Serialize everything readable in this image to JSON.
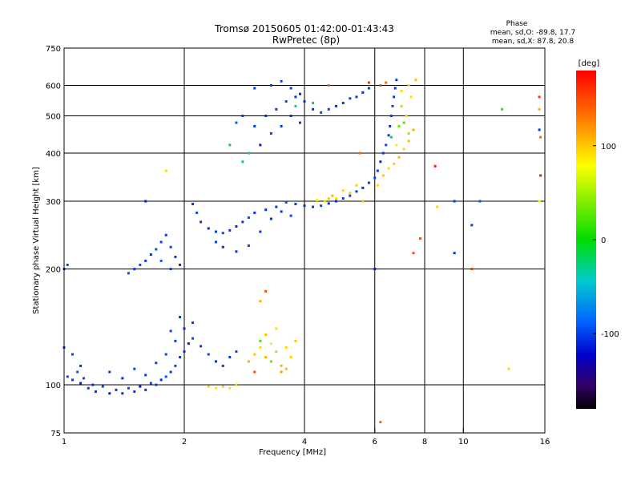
{
  "chart_data": {
    "type": "scatter",
    "title": "Tromsø 20150605 01:42:00-01:43:43",
    "subtitle": "RwPretec (8p)",
    "xlabel": "Frequency [MHz]",
    "ylabel": "Stationary phase Virtual Height [km]",
    "x_scale": "log",
    "y_scale": "log",
    "xlim": [
      1,
      16
    ],
    "ylim": [
      75,
      750
    ],
    "x_ticks": [
      1,
      2,
      4,
      6,
      8,
      10,
      16
    ],
    "x_tick_labels": [
      "1",
      "2",
      "4",
      "6",
      "8",
      "10",
      "16"
    ],
    "y_ticks": [
      75,
      100,
      200,
      300,
      400,
      500,
      600,
      750
    ],
    "y_tick_labels": [
      "75",
      "100",
      "200",
      "300",
      "400",
      "500",
      "600",
      "750"
    ],
    "grid": true,
    "phase_stats": {
      "heading": "Phase",
      "line1": "mean, sd,O: -89.8, 17.7",
      "line2": "mean, sd,X:  87.8, 20.8"
    },
    "colorbar": {
      "label": "[deg]",
      "ticks": [
        100,
        0,
        -100
      ],
      "tick_labels": [
        "100",
        "0",
        "-100"
      ],
      "range": [
        -180,
        180
      ]
    },
    "series": [
      {
        "points": [
          [
            1.02,
            105,
            -95
          ],
          [
            1.05,
            103,
            -100
          ],
          [
            1.08,
            108,
            -90
          ],
          [
            1.1,
            101,
            -110
          ],
          [
            1.12,
            104,
            -95
          ],
          [
            1.15,
            98,
            -100
          ],
          [
            1.18,
            100,
            -105
          ],
          [
            1.2,
            96,
            -100
          ],
          [
            1.25,
            99,
            -95
          ],
          [
            1.3,
            95,
            -110
          ],
          [
            1.35,
            97,
            -100
          ],
          [
            1.4,
            95,
            -105
          ],
          [
            1.45,
            98,
            -95
          ],
          [
            1.5,
            96,
            -100
          ],
          [
            1.55,
            99,
            -110
          ],
          [
            1.6,
            97,
            -100
          ],
          [
            1.65,
            101,
            -95
          ],
          [
            1.7,
            100,
            -100
          ],
          [
            1.75,
            103,
            -105
          ],
          [
            1.8,
            105,
            -90
          ],
          [
            1.85,
            108,
            -100
          ],
          [
            1.9,
            112,
            -95
          ],
          [
            1.95,
            118,
            -100
          ],
          [
            2.0,
            122,
            -105
          ],
          [
            2.05,
            128,
            -110
          ],
          [
            2.1,
            132,
            -95
          ],
          [
            2.2,
            126,
            -100
          ],
          [
            2.3,
            120,
            -95
          ],
          [
            2.4,
            115,
            -105
          ],
          [
            2.5,
            112,
            -100
          ],
          [
            2.6,
            118,
            -100
          ],
          [
            2.7,
            122,
            -95
          ],
          [
            1.3,
            108,
            -100
          ],
          [
            1.4,
            104,
            -105
          ],
          [
            1.5,
            110,
            -95
          ],
          [
            1.6,
            106,
            -100
          ],
          [
            1.7,
            114,
            -100
          ],
          [
            1.8,
            120,
            -95
          ],
          [
            1.9,
            130,
            -100
          ],
          [
            2.0,
            140,
            -105
          ],
          [
            1.95,
            150,
            -100
          ],
          [
            1.85,
            138,
            -95
          ],
          [
            2.1,
            145,
            -100
          ],
          [
            1.0,
            125,
            -100
          ],
          [
            1.05,
            120,
            -95
          ],
          [
            1.1,
            112,
            -100
          ],
          [
            2.3,
            99,
            110
          ],
          [
            2.4,
            98,
            105
          ],
          [
            2.5,
            99,
            112
          ],
          [
            2.6,
            98,
            108
          ],
          [
            2.7,
            100,
            110
          ],
          [
            2.9,
            115,
            120
          ],
          [
            3.0,
            120,
            115
          ],
          [
            3.1,
            125,
            110
          ],
          [
            3.2,
            118,
            120
          ],
          [
            3.3,
            128,
            105
          ],
          [
            3.4,
            122,
            115
          ],
          [
            3.5,
            112,
            120
          ],
          [
            3.6,
            125,
            110
          ],
          [
            3.7,
            118,
            112
          ],
          [
            3.2,
            135,
            118
          ],
          [
            3.4,
            140,
            108
          ],
          [
            3.1,
            130,
            30
          ],
          [
            3.3,
            115,
            40
          ],
          [
            3.0,
            108,
            150
          ],
          [
            3.5,
            108,
            125
          ],
          [
            3.8,
            130,
            115
          ],
          [
            3.6,
            110,
            118
          ],
          [
            3.2,
            175,
            150
          ],
          [
            3.1,
            165,
            120
          ],
          [
            1.45,
            195,
            -95
          ],
          [
            1.5,
            200,
            -100
          ],
          [
            1.55,
            205,
            -95
          ],
          [
            1.6,
            210,
            -100
          ],
          [
            1.65,
            218,
            -105
          ],
          [
            1.7,
            225,
            -95
          ],
          [
            1.75,
            235,
            -100
          ],
          [
            1.8,
            245,
            -100
          ],
          [
            1.85,
            228,
            -95
          ],
          [
            1.9,
            215,
            -100
          ],
          [
            1.95,
            205,
            -105
          ],
          [
            1.75,
            210,
            -90
          ],
          [
            1.85,
            200,
            -100
          ],
          [
            1.0,
            200,
            -100
          ],
          [
            1.02,
            205,
            -95
          ],
          [
            2.1,
            295,
            -100
          ],
          [
            2.15,
            280,
            -95
          ],
          [
            2.2,
            265,
            -100
          ],
          [
            2.3,
            255,
            -105
          ],
          [
            2.4,
            250,
            -100
          ],
          [
            2.5,
            248,
            -95
          ],
          [
            2.6,
            252,
            -100
          ],
          [
            2.7,
            258,
            -105
          ],
          [
            2.8,
            265,
            -100
          ],
          [
            2.9,
            272,
            -95
          ],
          [
            3.0,
            280,
            -100
          ],
          [
            3.2,
            285,
            -105
          ],
          [
            3.4,
            290,
            -100
          ],
          [
            3.6,
            298,
            -95
          ],
          [
            3.8,
            295,
            -100
          ],
          [
            4.0,
            292,
            -105
          ],
          [
            4.2,
            290,
            -100
          ],
          [
            4.4,
            292,
            -95
          ],
          [
            4.6,
            296,
            -100
          ],
          [
            4.8,
            300,
            -105
          ],
          [
            5.0,
            305,
            -100
          ],
          [
            5.2,
            310,
            -95
          ],
          [
            5.4,
            318,
            -100
          ],
          [
            5.6,
            325,
            -105
          ],
          [
            5.8,
            335,
            -100
          ],
          [
            6.0,
            345,
            -95
          ],
          [
            6.1,
            360,
            -100
          ],
          [
            6.2,
            380,
            -105
          ],
          [
            6.3,
            400,
            -100
          ],
          [
            6.4,
            420,
            -95
          ],
          [
            6.5,
            445,
            -100
          ],
          [
            6.55,
            470,
            -105
          ],
          [
            6.6,
            500,
            -100
          ],
          [
            6.65,
            530,
            -95
          ],
          [
            6.7,
            560,
            -100
          ],
          [
            6.75,
            590,
            -105
          ],
          [
            6.8,
            620,
            -100
          ],
          [
            2.4,
            235,
            -100
          ],
          [
            2.5,
            228,
            -105
          ],
          [
            2.7,
            222,
            -100
          ],
          [
            2.9,
            230,
            -95
          ],
          [
            3.1,
            250,
            -100
          ],
          [
            3.3,
            270,
            -105
          ],
          [
            3.5,
            282,
            -100
          ],
          [
            3.7,
            275,
            -95
          ],
          [
            4.5,
            300,
            110
          ],
          [
            4.6,
            305,
            115
          ],
          [
            4.7,
            310,
            120
          ],
          [
            4.8,
            305,
            108
          ],
          [
            5.0,
            320,
            110
          ],
          [
            5.2,
            315,
            115
          ],
          [
            4.3,
            302,
            105
          ],
          [
            5.4,
            330,
            112
          ],
          [
            5.6,
            300,
            118
          ],
          [
            6.1,
            330,
            110
          ],
          [
            6.3,
            350,
            115
          ],
          [
            6.5,
            365,
            108
          ],
          [
            6.7,
            375,
            112
          ],
          [
            6.9,
            390,
            118
          ],
          [
            7.1,
            410,
            110
          ],
          [
            7.3,
            430,
            115
          ],
          [
            7.5,
            460,
            120
          ],
          [
            7.2,
            500,
            110
          ],
          [
            7.0,
            530,
            115
          ],
          [
            7.4,
            560,
            108
          ],
          [
            7.3,
            600,
            112
          ],
          [
            7.6,
            620,
            118
          ],
          [
            7.0,
            580,
            110
          ],
          [
            6.8,
            420,
            105
          ],
          [
            6.9,
            470,
            40
          ],
          [
            7.1,
            480,
            30
          ],
          [
            7.3,
            450,
            60
          ],
          [
            6.6,
            440,
            -20
          ],
          [
            6.2,
            600,
            150
          ],
          [
            6.4,
            610,
            140
          ],
          [
            5.5,
            400,
            140
          ],
          [
            3.0,
            470,
            -100
          ],
          [
            3.2,
            500,
            -105
          ],
          [
            3.4,
            520,
            -100
          ],
          [
            3.6,
            545,
            -95
          ],
          [
            3.8,
            560,
            -100
          ],
          [
            4.0,
            545,
            -105
          ],
          [
            4.2,
            520,
            -100
          ],
          [
            4.4,
            510,
            -95
          ],
          [
            4.6,
            520,
            -100
          ],
          [
            4.8,
            530,
            -105
          ],
          [
            5.0,
            540,
            -100
          ],
          [
            5.2,
            555,
            -95
          ],
          [
            5.4,
            560,
            -100
          ],
          [
            5.6,
            575,
            -105
          ],
          [
            5.8,
            590,
            -100
          ],
          [
            3.1,
            420,
            -110
          ],
          [
            3.3,
            450,
            -95
          ],
          [
            3.5,
            470,
            -100
          ],
          [
            3.7,
            500,
            -105
          ],
          [
            3.9,
            480,
            -100
          ],
          [
            3.3,
            600,
            -100
          ],
          [
            3.5,
            615,
            -95
          ],
          [
            3.7,
            590,
            -100
          ],
          [
            3.9,
            570,
            -105
          ],
          [
            2.7,
            480,
            -90
          ],
          [
            2.8,
            500,
            -100
          ],
          [
            3.0,
            590,
            -100
          ],
          [
            2.8,
            380,
            -20
          ],
          [
            2.9,
            400,
            -30
          ],
          [
            2.6,
            420,
            -10
          ],
          [
            3.8,
            530,
            -40
          ],
          [
            4.2,
            540,
            -20
          ],
          [
            5.8,
            610,
            160
          ],
          [
            4.6,
            600,
            140
          ],
          [
            15.5,
            560,
            160
          ],
          [
            15.5,
            520,
            120
          ],
          [
            15.6,
            440,
            140
          ],
          [
            15.6,
            350,
            170
          ],
          [
            15.5,
            460,
            -100
          ],
          [
            15.5,
            300,
            100
          ],
          [
            9.5,
            300,
            -100
          ],
          [
            10.5,
            260,
            -100
          ],
          [
            10.5,
            200,
            160
          ],
          [
            11.0,
            300,
            -90
          ],
          [
            13.0,
            110,
            110
          ],
          [
            12.5,
            520,
            20
          ],
          [
            7.8,
            240,
            150
          ],
          [
            7.5,
            220,
            150
          ],
          [
            6.2,
            80,
            140
          ],
          [
            6.0,
            200,
            -110
          ],
          [
            9.5,
            220,
            -100
          ],
          [
            1.8,
            360,
            110
          ],
          [
            1.6,
            300,
            -110
          ],
          [
            8.5,
            370,
            170
          ],
          [
            8.6,
            290,
            110
          ]
        ]
      }
    ]
  }
}
